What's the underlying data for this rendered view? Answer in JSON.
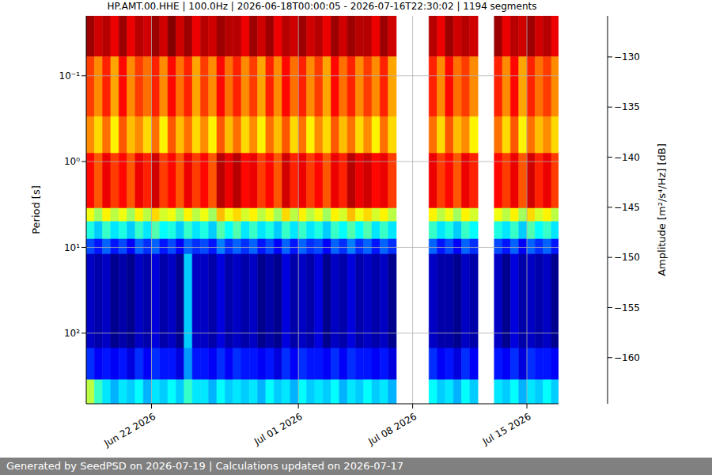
{
  "chart_data": {
    "type": "heatmap",
    "title": "HP.AMT.00.HHE | 100.0Hz | 2026-06-18T00:00:05 - 2026-07-16T22:30:02 | 1194 segments",
    "ylabel": "Period [s]",
    "footer": "Generated by SeedPSD on 2026-07-19 | Calculations updated on 2026-07-17",
    "log": "y",
    "grid": true,
    "xlim": [
      "2026-06-18T00:00:05",
      "2026-07-16T22:30:02"
    ],
    "xticks": [
      {
        "value": "2026-06-22T00:00",
        "label": "Jun 22 2026"
      },
      {
        "value": "2026-07-01T00:00",
        "label": "Jul 01 2026"
      },
      {
        "value": "2026-07-08T00:00",
        "label": "Jul 08 2026"
      },
      {
        "value": "2026-07-15T00:00",
        "label": "Jul 15 2026"
      }
    ],
    "ylim": [
      0.02,
      665
    ],
    "yticks": [
      {
        "value": 0.1,
        "label": "10⁻¹"
      },
      {
        "value": 1,
        "label": "10⁰"
      },
      {
        "value": 10,
        "label": "10¹"
      },
      {
        "value": 100,
        "label": "10²"
      }
    ],
    "x_edges": [
      "2026-06-18T00:00:05",
      "2026-06-18T12:00",
      "2026-06-19T00:00",
      "2026-06-19T12:00",
      "2026-06-20T00:00",
      "2026-06-20T12:00",
      "2026-06-21T00:00",
      "2026-06-21T12:00",
      "2026-06-22T00:00",
      "2026-06-22T12:00",
      "2026-06-23T00:00",
      "2026-06-23T12:00",
      "2026-06-24T00:00",
      "2026-06-24T12:00",
      "2026-06-25T00:00",
      "2026-06-25T12:00",
      "2026-06-26T00:00",
      "2026-06-26T12:00",
      "2026-06-27T00:00",
      "2026-06-27T12:00",
      "2026-06-28T00:00",
      "2026-06-28T12:00",
      "2026-06-29T00:00",
      "2026-06-29T12:00",
      "2026-06-30T00:00",
      "2026-06-30T12:00",
      "2026-07-01T00:00",
      "2026-07-01T12:00",
      "2026-07-02T00:00",
      "2026-07-02T12:00",
      "2026-07-03T00:00",
      "2026-07-03T12:00",
      "2026-07-04T00:00",
      "2026-07-04T12:00",
      "2026-07-05T00:00",
      "2026-07-05T12:00",
      "2026-07-06T00:00",
      "2026-07-06T12:00",
      "2026-07-07T00:00",
      "2026-07-07T12:00",
      "2026-07-08T00:00",
      "2026-07-08T12:00",
      "2026-07-09T00:00",
      "2026-07-09T12:00",
      "2026-07-10T00:00",
      "2026-07-10T12:00",
      "2026-07-11T00:00",
      "2026-07-11T12:00",
      "2026-07-12T00:00",
      "2026-07-12T12:00",
      "2026-07-13T00:00",
      "2026-07-13T12:00",
      "2026-07-14T00:00",
      "2026-07-14T12:00",
      "2026-07-15T00:00",
      "2026-07-15T12:00",
      "2026-07-16T00:00",
      "2026-07-16T12:00",
      "2026-07-16T22:30:02"
    ],
    "y_edges": [
      0.02,
      0.06,
      0.3,
      0.8,
      3.5,
      5,
      8,
      12,
      150,
      350,
      665
    ],
    "cells": [
      [
        -127,
        -129,
        -128,
        -130,
        -127,
        -130,
        -128,
        -129,
        -127,
        -129,
        -126,
        -129,
        -127,
        -130,
        -128,
        -129,
        -127,
        -128,
        -128,
        -130,
        -127,
        -129,
        -127,
        -130,
        -128,
        -129,
        -127,
        -129,
        -128,
        -130,
        -127,
        -129,
        -127,
        -128,
        -128,
        -130,
        -127,
        -129,
        null,
        null,
        null,
        null,
        -128,
        -130,
        -127,
        -129,
        -128,
        -129,
        null,
        null,
        -127,
        -130,
        -128,
        -129,
        -127,
        -129,
        -128,
        -130
      ],
      [
        -133,
        -136,
        -132,
        -137,
        -131,
        -136,
        -133,
        -135,
        -132,
        -136,
        -131,
        -135,
        -132,
        -137,
        -133,
        -136,
        -131,
        -135,
        -132,
        -136,
        -133,
        -137,
        -132,
        -136,
        -131,
        -135,
        -132,
        -136,
        -133,
        -137,
        -131,
        -135,
        -132,
        -136,
        -133,
        -136,
        -132,
        -137,
        null,
        null,
        null,
        null,
        -132,
        -136,
        -131,
        -135,
        -133,
        -136,
        null,
        null,
        -132,
        -136,
        -131,
        -137,
        -132,
        -135,
        -133,
        -136
      ],
      [
        -136,
        -139,
        -135,
        -140,
        -134,
        -138,
        -136,
        -139,
        -135,
        -140,
        -134,
        -138,
        -135,
        -139,
        -136,
        -140,
        -134,
        -138,
        -135,
        -139,
        -136,
        -140,
        -135,
        -138,
        -134,
        -139,
        -135,
        -140,
        -136,
        -139,
        -134,
        -138,
        -135,
        -139,
        -136,
        -140,
        -135,
        -139,
        null,
        null,
        null,
        null,
        -135,
        -139,
        -134,
        -138,
        -136,
        -140,
        null,
        null,
        -135,
        -139,
        -134,
        -140,
        -135,
        -138,
        -136,
        -139
      ],
      [
        -131,
        -134,
        -130,
        -133,
        -131,
        -134,
        -130,
        -132,
        -129,
        -133,
        -131,
        -134,
        -130,
        -133,
        -131,
        -134,
        -128,
        -130,
        -128,
        -131,
        -130,
        -133,
        -131,
        -134,
        -129,
        -132,
        -130,
        -133,
        -131,
        -134,
        -130,
        -132,
        -128,
        -130,
        -129,
        -131,
        -130,
        -133,
        null,
        null,
        null,
        null,
        -130,
        -133,
        -131,
        -134,
        -130,
        -132,
        null,
        null,
        -131,
        -133,
        -130,
        -134,
        -129,
        -132,
        -130,
        -133
      ],
      [
        -141,
        -144,
        -140,
        -143,
        -141,
        -144,
        -140,
        -143,
        -139,
        -142,
        -141,
        -144,
        -140,
        -143,
        -141,
        -144,
        -138,
        -141,
        -139,
        -142,
        -140,
        -143,
        -141,
        -144,
        -139,
        -143,
        -140,
        -143,
        -141,
        -144,
        -140,
        -142,
        -138,
        -141,
        -139,
        -142,
        -140,
        -143,
        null,
        null,
        null,
        null,
        -140,
        -143,
        -141,
        -144,
        -140,
        -142,
        null,
        null,
        -141,
        -143,
        -140,
        -144,
        -139,
        -142,
        -140,
        -143
      ],
      [
        -149,
        -152,
        -148,
        -151,
        -149,
        -152,
        -148,
        -151,
        -147,
        -150,
        -149,
        -152,
        -148,
        -151,
        -149,
        -152,
        -147,
        -150,
        -147,
        -151,
        -148,
        -151,
        -149,
        -152,
        -148,
        -151,
        -148,
        -151,
        -149,
        -152,
        -148,
        -150,
        -147,
        -150,
        -147,
        -151,
        -148,
        -151,
        null,
        null,
        null,
        null,
        -148,
        -151,
        -149,
        -152,
        -148,
        -150,
        null,
        null,
        -149,
        -151,
        -148,
        -152,
        -147,
        -150,
        -148,
        -151
      ],
      [
        -157,
        -159,
        -156,
        -159,
        -157,
        -160,
        -156,
        -158,
        -156,
        -159,
        -157,
        -160,
        -156,
        -158,
        -157,
        -159,
        -155,
        -158,
        -156,
        -158,
        -156,
        -159,
        -157,
        -160,
        -156,
        -159,
        -156,
        -158,
        -157,
        -160,
        -156,
        -158,
        -155,
        -158,
        -156,
        -159,
        -156,
        -158,
        null,
        null,
        null,
        null,
        -156,
        -159,
        -157,
        -160,
        -156,
        -158,
        null,
        null,
        -157,
        -159,
        -156,
        -160,
        -156,
        -158,
        -156,
        -159
      ],
      [
        -162,
        -163,
        -162,
        -164,
        -163,
        -164,
        -162,
        -163,
        -161,
        -163,
        -162,
        -164,
        -152,
        -162,
        -162,
        -163,
        -161,
        -163,
        -162,
        -163,
        -162,
        -164,
        -163,
        -164,
        -161,
        -163,
        -162,
        -163,
        -161,
        -164,
        -162,
        -163,
        -161,
        -163,
        -162,
        -163,
        -162,
        -164,
        null,
        null,
        null,
        null,
        -162,
        -163,
        -163,
        -164,
        -162,
        -163,
        null,
        null,
        -162,
        -164,
        -161,
        -163,
        -162,
        -163,
        -162,
        -164
      ],
      [
        -158,
        -160,
        -159,
        -160,
        -159,
        -161,
        -158,
        -160,
        -158,
        -159,
        -159,
        -161,
        -154,
        -159,
        -159,
        -160,
        -158,
        -160,
        -158,
        -159,
        -159,
        -160,
        -159,
        -161,
        -158,
        -160,
        -158,
        -159,
        -159,
        -160,
        -158,
        -160,
        -158,
        -159,
        -159,
        -160,
        -159,
        -161,
        null,
        null,
        null,
        null,
        -158,
        -160,
        -159,
        -161,
        -158,
        -160,
        null,
        null,
        -159,
        -160,
        -158,
        -161,
        -158,
        -159,
        -159,
        -160
      ],
      [
        -143,
        -148,
        -151,
        -153,
        -151,
        -152,
        -150,
        -153,
        -151,
        -152,
        -150,
        -152,
        -148,
        -151,
        -151,
        -153,
        -150,
        -152,
        -151,
        -152,
        -151,
        -153,
        -150,
        -152,
        -151,
        -153,
        -150,
        -152,
        -151,
        -152,
        -150,
        -153,
        -151,
        -152,
        -150,
        -152,
        -151,
        -153,
        null,
        null,
        null,
        null,
        -150,
        -152,
        -151,
        -153,
        -150,
        -152,
        null,
        null,
        -151,
        -152,
        -150,
        -153,
        -151,
        -152,
        -150,
        -152
      ]
    ],
    "colorbar": {
      "label": "Amplitude [m²/s⁴/Hz] [dB]",
      "clim": [
        -164.6,
        -125.9
      ],
      "ticks": [
        {
          "value": -160,
          "label": "−160"
        },
        {
          "value": -155,
          "label": "−155"
        },
        {
          "value": -150,
          "label": "−150"
        },
        {
          "value": -145,
          "label": "−145"
        },
        {
          "value": -140,
          "label": "−140"
        },
        {
          "value": -135,
          "label": "−135"
        },
        {
          "value": -130,
          "label": "−130"
        }
      ]
    }
  }
}
